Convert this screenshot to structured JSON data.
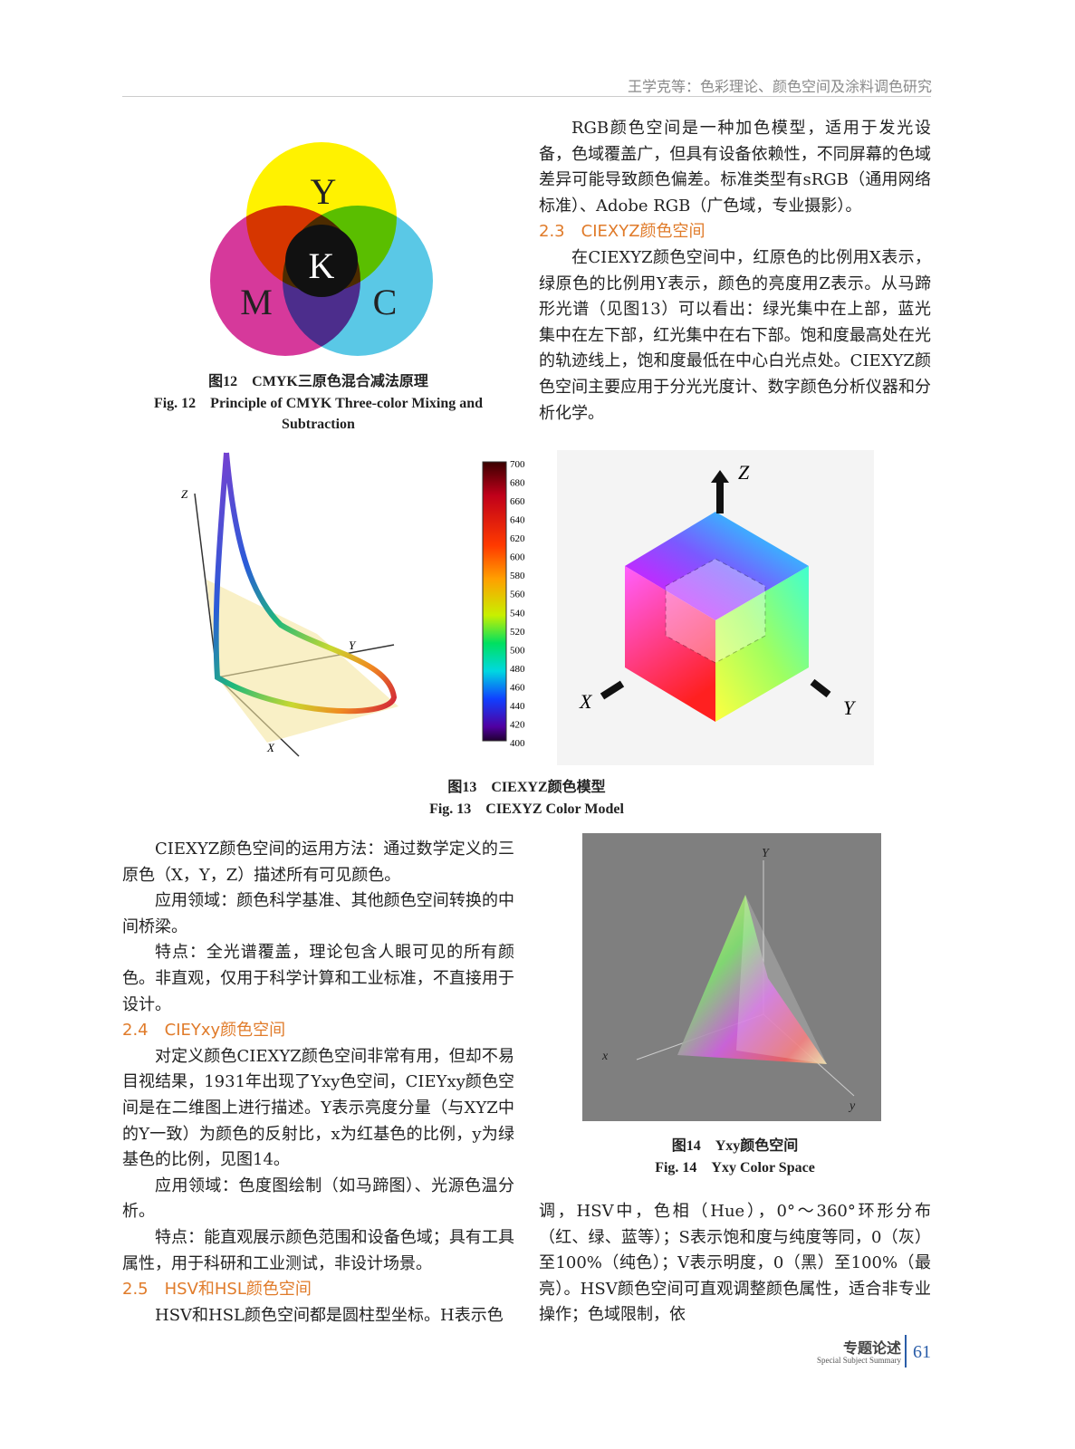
{
  "header": {
    "running_title": "王学克等：色彩理论、颜色空间及涂料调色研究"
  },
  "figure12": {
    "labels": {
      "y": "Y",
      "k": "K",
      "m": "M",
      "c": "C"
    },
    "caption_cn": "图12　CMYK三原色混合减法原理",
    "caption_en": "Fig. 12　Principle of CMYK Three-color Mixing and Subtraction"
  },
  "right_top": {
    "paragraph_1": "RGB颜色空间是一种加色模型，适用于发光设备，色域覆盖广，但具有设备依赖性，不同屏幕的色域差异可能导致颜色偏差。标准类型有sRGB（通用网络标准）、Adobe RGB（广色域，专业摄影）。",
    "heading": "2.3　CIEXYZ颜色空间",
    "paragraph_2": "在CIEXYZ颜色空间中，红原色的比例用X表示，绿原色的比例用Y表示，颜色的亮度用Z表示。从马蹄形光谱（见图13）可以看出：绿光集中在上部，蓝光集中在左下部，红光集中在右下部。饱和度最高处在光的轨迹线上，饱和度最低在中心白光点处。CIEXYZ颜色空间主要应用于分光光度计、数字颜色分析仪器和分析化学。"
  },
  "figure13": {
    "plot_axes": {
      "z": "Z",
      "y": "Y",
      "x": "X"
    },
    "colorbar_ticks": [
      700,
      680,
      660,
      640,
      620,
      600,
      580,
      560,
      540,
      520,
      500,
      480,
      460,
      440,
      420,
      400
    ],
    "cube_axes": {
      "z": "Z",
      "x": "X",
      "y": "Y"
    },
    "caption_cn": "图13　CIEXYZ颜色模型",
    "caption_en": "Fig. 13　CIEXYZ Color Model"
  },
  "left_bottom": {
    "paragraphs": [
      "CIEXYZ颜色空间的运用方法：通过数学定义的三原色（X，Y，Z）描述所有可见颜色。",
      "应用领域：颜色科学基准、其他颜色空间转换的中间桥梁。",
      "特点：全光谱覆盖，理论包含人眼可见的所有颜色。非直观，仅用于科学计算和工业标准，不直接用于设计。"
    ],
    "heading_1": "2.4　CIEYxy颜色空间",
    "paragraphs_2": [
      "对定义颜色CIEXYZ颜色空间非常有用，但却不易目视结果，1931年出现了Yxy色空间，CIEYxy颜色空间是在二维图上进行描述。Y表示亮度分量（与XYZ中的Y一致）为颜色的反射比，x为红基色的比例，y为绿基色的比例，见图14。",
      "应用领域：色度图绘制（如马蹄图）、光源色温分析。",
      "特点：能直观展示颜色范围和设备色域；具有工具属性，用于科研和工业测试，非设计场景。"
    ],
    "heading_2": "2.5　HSV和HSL颜色空间",
    "paragraph_3": "HSV和HSL颜色空间都是圆柱型坐标。H表示色"
  },
  "figure14": {
    "axes": {
      "y_upper": "Y",
      "x": "x",
      "y": "y"
    },
    "caption_cn": "图14　Yxy颜色空间",
    "caption_en": "Fig. 14　Yxy Color Space"
  },
  "right_bottom": {
    "paragraph": "调，HSV中，色相（Hue），0°～360°环形分布（红、绿、蓝等）；S表示饱和度与纯度等同，0（灰）至100%（纯色）；V表示明度，0（黑）至100%（最亮）。HSV颜色空间可直观调整颜色属性，适合非专业操作；色域限制，依"
  },
  "footer": {
    "section": "专题论述",
    "section_en": "Special Subject Summary",
    "page": "61"
  }
}
